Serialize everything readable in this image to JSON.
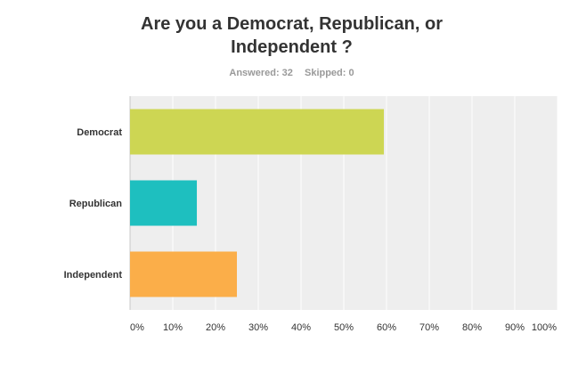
{
  "question": {
    "title_line1": "Are you a Democrat, Republican, or",
    "title_line2": "Independent ?"
  },
  "stats": {
    "answered": "Answered: 32",
    "skipped": "Skipped: 0"
  },
  "chart_data": {
    "type": "bar",
    "orientation": "horizontal",
    "categories": [
      "Democrat",
      "Republican",
      "Independent"
    ],
    "values": [
      59.38,
      15.63,
      25.0
    ],
    "colors": [
      "#cdd653",
      "#1ebfbf",
      "#fbae49"
    ],
    "xlim": [
      0,
      100
    ],
    "xticks": [
      "0%",
      "10%",
      "20%",
      "30%",
      "40%",
      "50%",
      "60%",
      "70%",
      "80%",
      "90%",
      "100%"
    ],
    "grid": true,
    "plot_background": "#eeeeee"
  }
}
